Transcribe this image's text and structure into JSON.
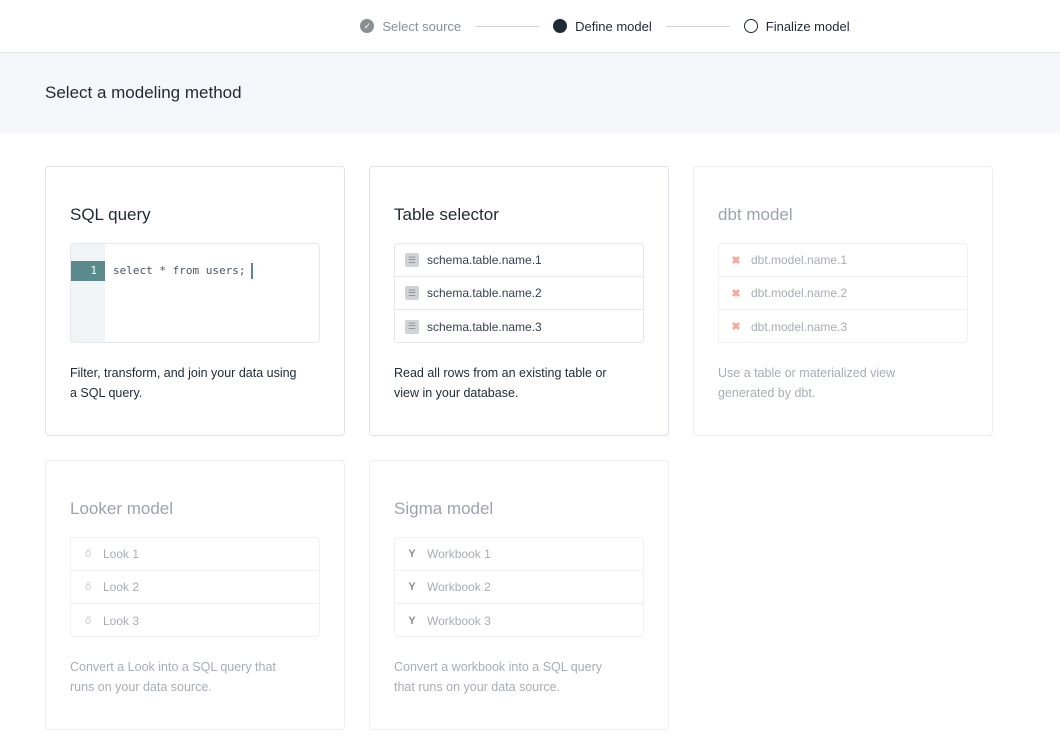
{
  "stepper": [
    {
      "label": "Select source",
      "state": "done"
    },
    {
      "label": "Define model",
      "state": "current"
    },
    {
      "label": "Finalize model",
      "state": "todo"
    }
  ],
  "page_title": "Select a modeling method",
  "cards": [
    {
      "title": "SQL query",
      "line_number": "1",
      "code": "select * from users;",
      "description": "Filter, transform, and join your data using a SQL query.",
      "disabled": false
    },
    {
      "title": "Table selector",
      "items": [
        "schema.table.name.1",
        "schema.table.name.2",
        "schema.table.name.3"
      ],
      "icon": "table-icon",
      "description": "Read all rows from an existing table or view in your database.",
      "disabled": false
    },
    {
      "title": "dbt model",
      "items": [
        "dbt.model.name.1",
        "dbt.model.name.2",
        "dbt.model.name.3"
      ],
      "icon": "dbt-icon",
      "icon_color": "#f7a898",
      "description": "Use a table or materialized view generated by dbt.",
      "disabled": true
    },
    {
      "title": "Looker model",
      "items": [
        "Look 1",
        "Look 2",
        "Look 3"
      ],
      "icon": "looker-icon",
      "description": "Convert a Look into a SQL query that runs on your data source.",
      "disabled": true
    },
    {
      "title": "Sigma model",
      "items": [
        "Workbook 1",
        "Workbook 2",
        "Workbook 3"
      ],
      "icon": "sigma-icon",
      "description": "Convert a workbook into a SQL query that runs on your data source.",
      "disabled": true
    }
  ]
}
